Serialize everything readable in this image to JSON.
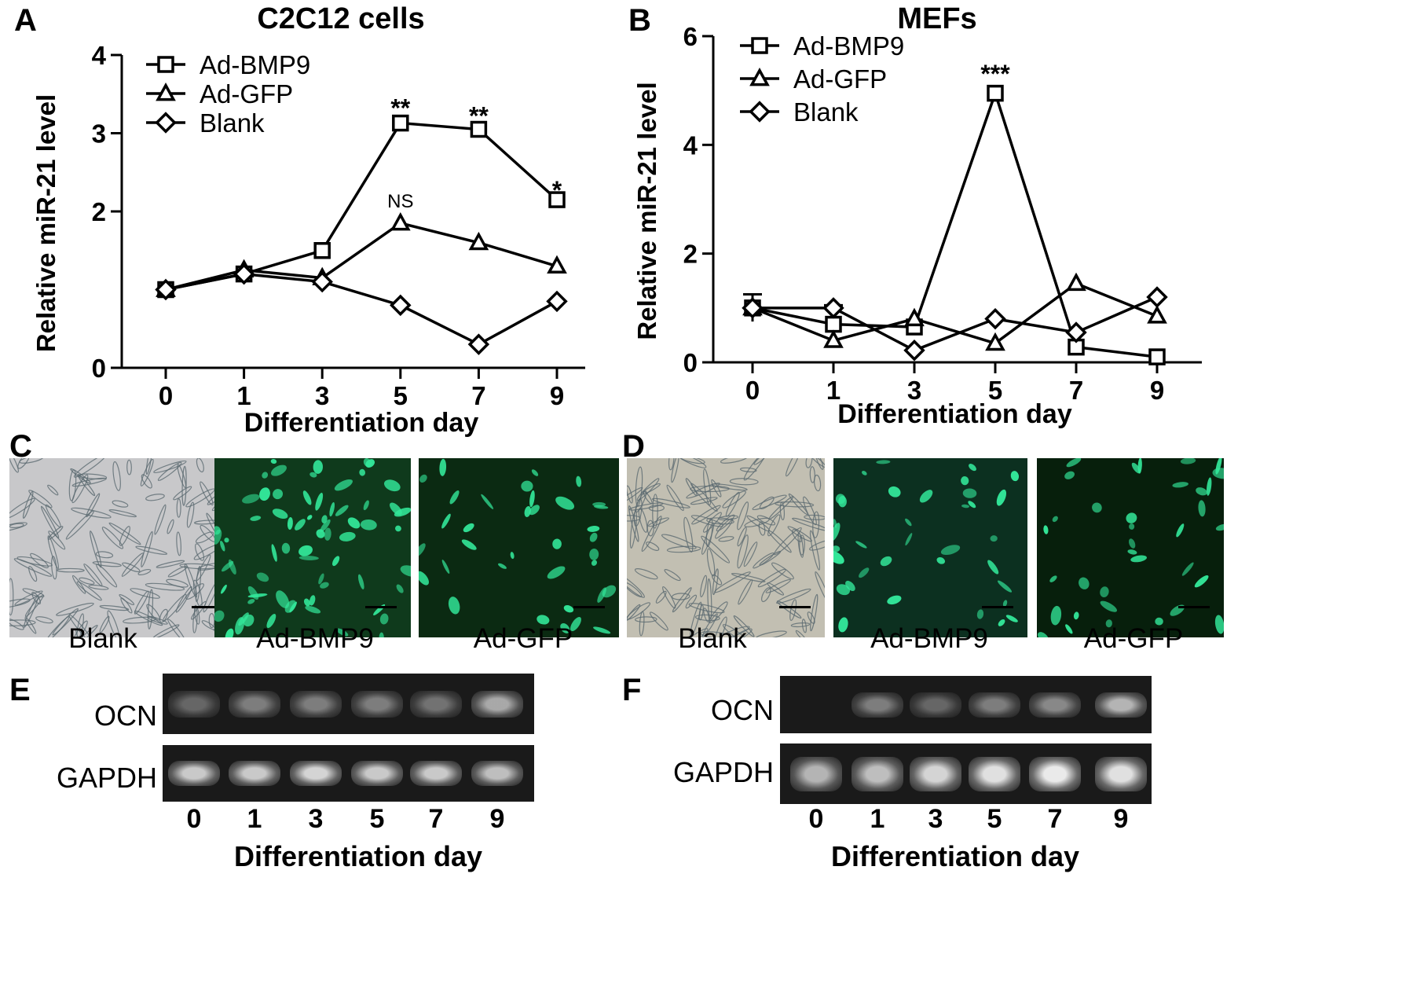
{
  "panels": {
    "A": "A",
    "B": "B",
    "C": "C",
    "D": "D",
    "E": "E",
    "F": "F"
  },
  "chart_data": [
    {
      "type": "line",
      "title": "C2C12 cells",
      "xlabel": "Differentiation day",
      "ylabel": "Relative miR-21 level",
      "categories": [
        "0",
        "1",
        "3",
        "5",
        "7",
        "9"
      ],
      "yticks": [
        "0",
        "2",
        "3",
        "4"
      ],
      "ylim": [
        0,
        4
      ],
      "legend_position": "top-left",
      "series": [
        {
          "name": "Ad-BMP9",
          "marker": "square",
          "values": [
            1.0,
            1.2,
            1.5,
            3.13,
            3.05,
            2.15
          ]
        },
        {
          "name": "Ad-GFP",
          "marker": "triangle",
          "values": [
            1.0,
            1.25,
            1.15,
            1.85,
            1.6,
            1.3
          ]
        },
        {
          "name": "Blank",
          "marker": "diamond",
          "values": [
            1.0,
            1.2,
            1.1,
            0.8,
            0.3,
            0.85
          ]
        }
      ],
      "annotations": [
        {
          "category": "5",
          "text": "**",
          "y": 3.35
        },
        {
          "category": "7",
          "text": "**",
          "y": 3.25
        },
        {
          "category": "9",
          "text": "*",
          "y": 2.3
        },
        {
          "category": "5",
          "text": "NS",
          "y": 2.05
        }
      ]
    },
    {
      "type": "line",
      "title": "MEFs",
      "xlabel": "Differentiation day",
      "ylabel": "Relative miR-21 level",
      "categories": [
        "0",
        "1",
        "3",
        "5",
        "7",
        "9"
      ],
      "yticks": [
        "0",
        "2",
        "4",
        "6"
      ],
      "ylim": [
        0,
        6
      ],
      "legend_position": "top-left",
      "series": [
        {
          "name": "Ad-BMP9",
          "marker": "square",
          "values": [
            1.0,
            0.7,
            0.65,
            4.95,
            0.28,
            0.1
          ],
          "errors": [
            0.25,
            0.35,
            0,
            0,
            0,
            0
          ]
        },
        {
          "name": "Ad-GFP",
          "marker": "triangle",
          "values": [
            1.0,
            0.4,
            0.8,
            0.35,
            1.45,
            0.85
          ]
        },
        {
          "name": "Blank",
          "marker": "diamond",
          "values": [
            1.0,
            1.0,
            0.22,
            0.8,
            0.55,
            1.2
          ]
        }
      ],
      "annotations": [
        {
          "category": "5",
          "text": "***",
          "y": 5.35
        }
      ]
    }
  ],
  "micrographs": {
    "C": [
      "Blank",
      "Ad-BMP9",
      "Ad-GFP"
    ],
    "D": [
      "Blank",
      "Ad-BMP9",
      "Ad-GFP"
    ]
  },
  "gels": {
    "E": {
      "rows": [
        "OCN",
        "GAPDH"
      ],
      "lanes": [
        "0",
        "1",
        "3",
        "5",
        "7",
        "9"
      ],
      "xlabel": "Differentiation day",
      "ocn_intensity": [
        0.35,
        0.45,
        0.45,
        0.45,
        0.4,
        0.65
      ],
      "gapdh_intensity": [
        0.8,
        0.8,
        0.85,
        0.8,
        0.8,
        0.75
      ]
    },
    "F": {
      "rows": [
        "OCN",
        "GAPDH"
      ],
      "lanes": [
        "0",
        "1",
        "3",
        "5",
        "7",
        "9"
      ],
      "xlabel": "Differentiation day",
      "ocn_intensity": [
        0.0,
        0.45,
        0.35,
        0.45,
        0.5,
        0.7
      ],
      "gapdh_intensity": [
        0.7,
        0.75,
        0.85,
        0.9,
        0.95,
        0.9
      ]
    }
  },
  "colors": {
    "line": "#000000",
    "brightfield_bg": "#c8c8ca",
    "brightfield_bg_mef": "#c2bfb2",
    "fluor_bg": "#0b2a12",
    "fluor_cell": "#33e89a",
    "gel_bg": "#1a1a1a",
    "band": "#f0f0f0"
  }
}
